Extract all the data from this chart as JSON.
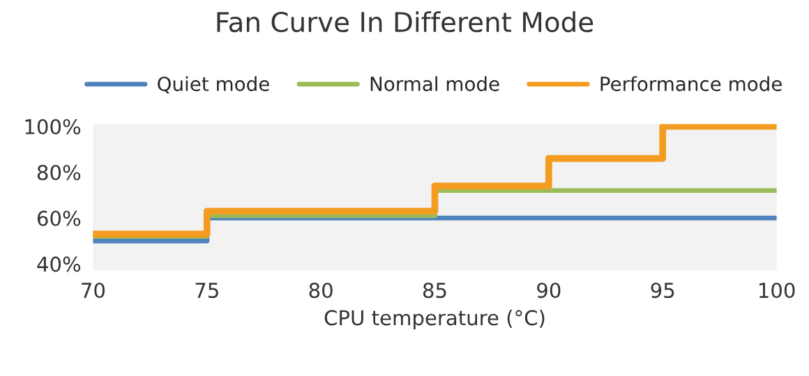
{
  "chart_data": {
    "type": "step",
    "title": "Fan Curve In Different Mode",
    "xlabel": "CPU temperature (°C)",
    "x": [
      70,
      75,
      85,
      90,
      95,
      100
    ],
    "series": [
      {
        "name": "Quiet mode",
        "color": "#4f81bd",
        "values": [
          50,
          60,
          60,
          60,
          60,
          60
        ]
      },
      {
        "name": "Normal mode",
        "color": "#9bbb59",
        "values": [
          52,
          61,
          72,
          72,
          72,
          72
        ]
      },
      {
        "name": "Performance mode",
        "color": "#f39c1f",
        "values": [
          53,
          63,
          74,
          86,
          100,
          100
        ]
      }
    ],
    "xlim": [
      70,
      100
    ],
    "xticks": [
      70,
      75,
      80,
      85,
      90,
      95,
      100
    ],
    "ylim": [
      37,
      101
    ],
    "yticks": [
      {
        "value": 40,
        "label": "40%"
      },
      {
        "value": 60,
        "label": "60%"
      },
      {
        "value": 80,
        "label": "80%"
      },
      {
        "value": 100,
        "label": "100%"
      }
    ],
    "grid": false,
    "legend": "top"
  }
}
